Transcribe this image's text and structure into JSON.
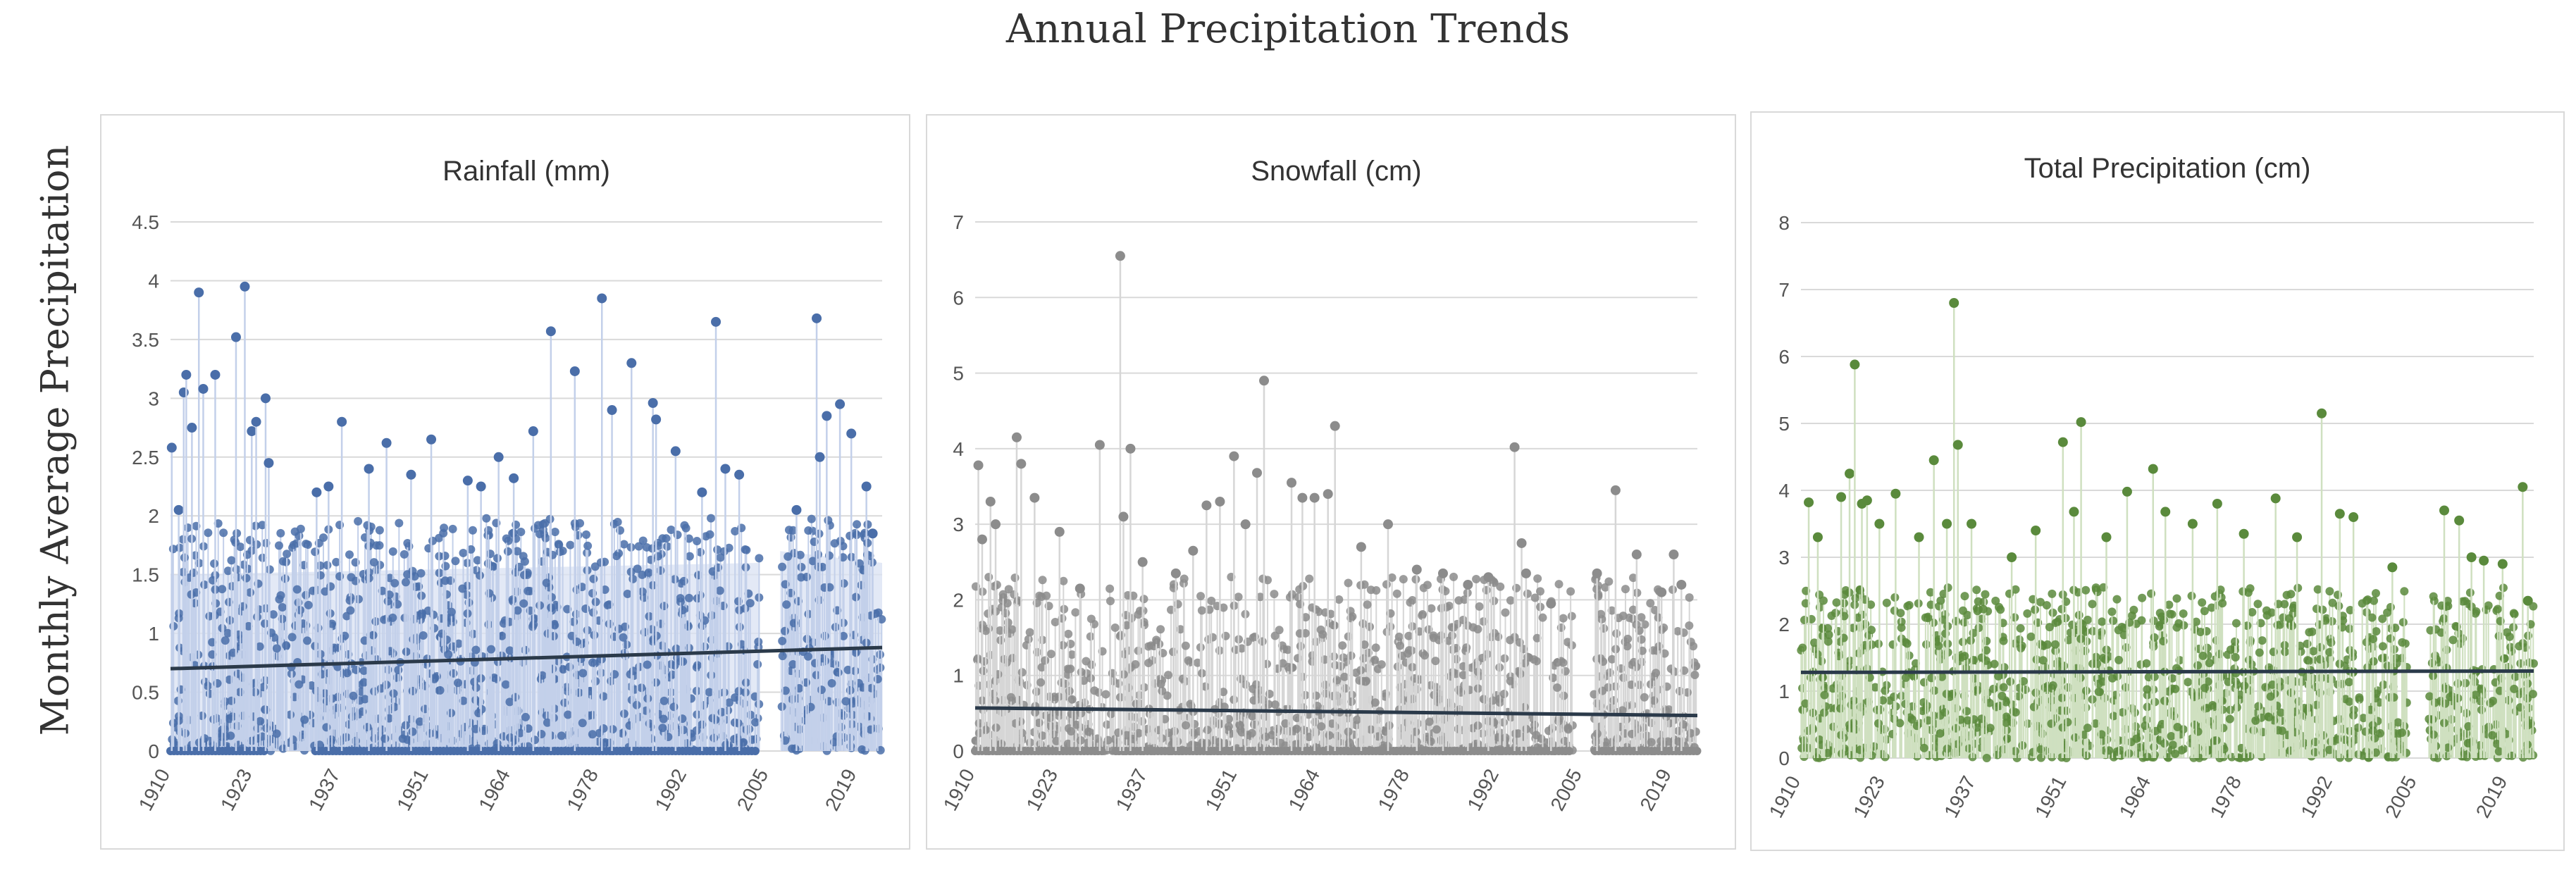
{
  "figure_title": "Annual Precipitation Trends",
  "y_axis_label": "Monthly Average Precipitation",
  "colors": {
    "rain_points": "#4a6ea9",
    "rain_stems": "#c3d0ea",
    "rain_fill": "#d9e2f3",
    "snow_points": "#8c8c8c",
    "snow_stems": "#d6d6d6",
    "total_points": "#5a8a3c",
    "total_stems": "#cfe0c0",
    "trend": "#2b3a4a",
    "grid": "#d9d9d9",
    "panel_border": "#d9d9d9"
  },
  "chart_data": [
    {
      "type": "scatter",
      "title": "Rainfall (mm)",
      "xlabel": "",
      "ylabel": "Monthly Average Precipitation",
      "xlim": [
        1910,
        2023
      ],
      "ylim": [
        0,
        4.5
      ],
      "yticks": [
        0,
        0.5,
        1,
        1.5,
        2,
        2.5,
        3,
        3.5,
        4,
        4.5
      ],
      "ytick_labels": [
        "0",
        "0.5",
        "1",
        "1.5",
        "2",
        "2.5",
        "3",
        "3.5",
        "4",
        "4.5"
      ],
      "xticks": [
        1910,
        1923,
        1937,
        1951,
        1964,
        1978,
        1992,
        2005,
        2019
      ],
      "xtick_labels": [
        "1910",
        "1923",
        "1937",
        "1951",
        "1964",
        "1978",
        "1992",
        "2005",
        "2019"
      ],
      "gaps": [
        [
          2003.5,
          2006.8
        ]
      ],
      "zero_runs": [
        [
          1910,
          1925
        ],
        [
          1933,
          2003
        ]
      ],
      "trend": {
        "x": [
          1910,
          2023
        ],
        "y": [
          0.7,
          0.88
        ]
      },
      "series": [
        {
          "name": "Rainfall (mm)",
          "points": [
            [
              1910.2,
              2.58
            ],
            [
              1911.3,
              2.05
            ],
            [
              1912.1,
              3.05
            ],
            [
              1912.5,
              3.2
            ],
            [
              1913.4,
              2.75
            ],
            [
              1914.5,
              3.9
            ],
            [
              1915.2,
              3.08
            ],
            [
              1917.1,
              3.2
            ],
            [
              1920.4,
              3.52
            ],
            [
              1921.8,
              3.95
            ],
            [
              1922.9,
              2.72
            ],
            [
              1923.6,
              2.8
            ],
            [
              1925.1,
              3.0
            ],
            [
              1925.6,
              2.45
            ],
            [
              1933.2,
              2.2
            ],
            [
              1935.1,
              2.25
            ],
            [
              1937.2,
              2.8
            ],
            [
              1941.5,
              2.4
            ],
            [
              1944.3,
              2.62
            ],
            [
              1948.2,
              2.35
            ],
            [
              1951.4,
              2.65
            ],
            [
              1957.2,
              2.3
            ],
            [
              1959.3,
              2.25
            ],
            [
              1962.1,
              2.5
            ],
            [
              1964.5,
              2.32
            ],
            [
              1967.6,
              2.72
            ],
            [
              1970.4,
              3.57
            ],
            [
              1974.2,
              3.23
            ],
            [
              1978.5,
              3.85
            ],
            [
              1980.1,
              2.9
            ],
            [
              1983.2,
              3.3
            ],
            [
              1986.6,
              2.96
            ],
            [
              1987.1,
              2.82
            ],
            [
              1990.2,
              2.55
            ],
            [
              1994.4,
              2.2
            ],
            [
              1996.6,
              3.65
            ],
            [
              1998.1,
              2.4
            ],
            [
              2000.3,
              2.35
            ],
            [
              2009.4,
              2.05
            ],
            [
              2012.6,
              3.68
            ],
            [
              2013.1,
              2.5
            ],
            [
              2014.2,
              2.85
            ],
            [
              2016.3,
              2.95
            ],
            [
              2018.1,
              2.7
            ],
            [
              2020.5,
              2.25
            ],
            [
              2021.5,
              1.85
            ]
          ]
        }
      ]
    },
    {
      "type": "scatter",
      "title": "Snowfall (cm)",
      "xlabel": "",
      "ylabel": "",
      "xlim": [
        1910,
        2023
      ],
      "ylim": [
        0,
        7
      ],
      "yticks": [
        0,
        1,
        2,
        3,
        4,
        5,
        6,
        7
      ],
      "ytick_labels": [
        "0",
        "1",
        "2",
        "3",
        "4",
        "5",
        "6",
        "7"
      ],
      "xticks": [
        1910,
        1923,
        1937,
        1951,
        1964,
        1978,
        1992,
        2005,
        2019
      ],
      "xtick_labels": [
        "1910",
        "1923",
        "1937",
        "1951",
        "1964",
        "1978",
        "1992",
        "2005",
        "2019"
      ],
      "gaps": [
        [
          2003.5,
          2006.8
        ]
      ],
      "zero_runs": [
        [
          1910,
          1930
        ],
        [
          1932,
          2003
        ],
        [
          2007,
          2023
        ]
      ],
      "trend": {
        "x": [
          1910,
          2023
        ],
        "y": [
          0.57,
          0.47
        ]
      },
      "series": [
        {
          "name": "Snowfall (cm)",
          "points": [
            [
              1910.5,
              3.78
            ],
            [
              1911.1,
              2.8
            ],
            [
              1912.4,
              3.3
            ],
            [
              1913.2,
              3.0
            ],
            [
              1916.5,
              4.15
            ],
            [
              1917.2,
              3.8
            ],
            [
              1919.3,
              3.35
            ],
            [
              1923.2,
              2.9
            ],
            [
              1926.4,
              2.15
            ],
            [
              1929.5,
              4.05
            ],
            [
              1932.7,
              6.55
            ],
            [
              1933.2,
              3.1
            ],
            [
              1934.3,
              4.0
            ],
            [
              1936.2,
              2.5
            ],
            [
              1941.4,
              2.35
            ],
            [
              1944.1,
              2.65
            ],
            [
              1946.2,
              3.25
            ],
            [
              1948.3,
              3.3
            ],
            [
              1950.5,
              3.9
            ],
            [
              1952.3,
              3.0
            ],
            [
              1954.1,
              3.68
            ],
            [
              1955.2,
              4.9
            ],
            [
              1959.5,
              3.55
            ],
            [
              1961.2,
              3.35
            ],
            [
              1963.1,
              3.35
            ],
            [
              1965.2,
              3.4
            ],
            [
              1966.3,
              4.3
            ],
            [
              1970.4,
              2.7
            ],
            [
              1974.6,
              3.0
            ],
            [
              1979.1,
              2.4
            ],
            [
              1983.2,
              2.35
            ],
            [
              1987.1,
              2.2
            ],
            [
              1990.3,
              2.3
            ],
            [
              1994.4,
              4.02
            ],
            [
              1995.5,
              2.75
            ],
            [
              1996.2,
              2.35
            ],
            [
              2000.1,
              1.95
            ],
            [
              2007.3,
              2.35
            ],
            [
              2010.2,
              3.45
            ],
            [
              2013.5,
              2.6
            ],
            [
              2017.4,
              2.1
            ],
            [
              2019.3,
              2.6
            ],
            [
              2020.5,
              2.2
            ]
          ]
        }
      ]
    },
    {
      "type": "scatter",
      "title": "Total Precipitation (cm)",
      "xlabel": "",
      "ylabel": "",
      "xlim": [
        1910,
        2023
      ],
      "ylim": [
        0,
        8
      ],
      "yticks": [
        0,
        1,
        2,
        3,
        4,
        5,
        6,
        7,
        8
      ],
      "ytick_labels": [
        "0",
        "1",
        "2",
        "3",
        "4",
        "5",
        "6",
        "7",
        "8"
      ],
      "xticks": [
        1910,
        1923,
        1937,
        1951,
        1964,
        1978,
        1992,
        2005,
        2019
      ],
      "xtick_labels": [
        "1910",
        "1923",
        "1937",
        "1951",
        "1964",
        "1978",
        "1992",
        "2005",
        "2019"
      ],
      "gaps": [
        [
          2003.5,
          2006.8
        ]
      ],
      "zero_runs": [],
      "trend": {
        "x": [
          1910,
          2023
        ],
        "y": [
          1.28,
          1.3
        ]
      },
      "series": [
        {
          "name": "Total Precipitation (cm)",
          "points": [
            [
              1911.2,
              3.82
            ],
            [
              1912.6,
              3.3
            ],
            [
              1916.2,
              3.9
            ],
            [
              1917.5,
              4.25
            ],
            [
              1918.3,
              5.88
            ],
            [
              1919.4,
              3.8
            ],
            [
              1920.2,
              3.85
            ],
            [
              1922.1,
              3.5
            ],
            [
              1924.6,
              3.95
            ],
            [
              1928.2,
              3.3
            ],
            [
              1930.5,
              4.45
            ],
            [
              1932.5,
              3.5
            ],
            [
              1933.6,
              6.8
            ],
            [
              1934.2,
              4.68
            ],
            [
              1936.3,
              3.5
            ],
            [
              1942.5,
              3.0
            ],
            [
              1946.2,
              3.4
            ],
            [
              1950.4,
              4.72
            ],
            [
              1952.1,
              3.68
            ],
            [
              1953.2,
              5.02
            ],
            [
              1957.1,
              3.3
            ],
            [
              1960.3,
              3.98
            ],
            [
              1964.3,
              4.32
            ],
            [
              1966.2,
              3.68
            ],
            [
              1970.4,
              3.5
            ],
            [
              1974.2,
              3.8
            ],
            [
              1978.3,
              3.35
            ],
            [
              1983.2,
              3.88
            ],
            [
              1986.5,
              3.3
            ],
            [
              1990.3,
              5.15
            ],
            [
              1993.1,
              3.65
            ],
            [
              1995.2,
              3.6
            ],
            [
              2001.2,
              2.85
            ],
            [
              2009.2,
              3.7
            ],
            [
              2011.5,
              3.55
            ],
            [
              2013.4,
              3.0
            ],
            [
              2015.3,
              2.95
            ],
            [
              2018.2,
              2.9
            ],
            [
              2021.3,
              4.05
            ],
            [
              2022.1,
              2.35
            ]
          ]
        }
      ]
    }
  ]
}
